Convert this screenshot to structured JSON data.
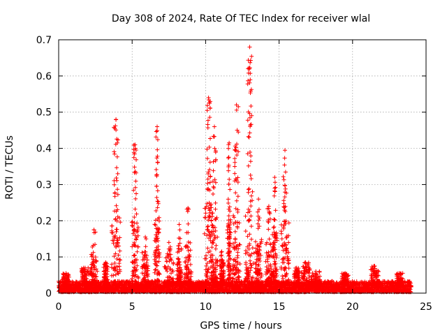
{
  "chart_data": {
    "type": "scatter",
    "title": "Day 308 of 2024, Rate Of TEC Index for receiver wlal",
    "xlabel": "GPS time / hours",
    "ylabel": "ROTI / TECUs",
    "xlim": [
      0,
      25
    ],
    "ylim": [
      0,
      0.7
    ],
    "xticks": [
      0,
      5,
      10,
      15,
      20,
      25
    ],
    "xtick_labels": [
      "0",
      "5",
      "10",
      "15",
      "20",
      "25"
    ],
    "yticks": [
      0,
      0.1,
      0.2,
      0.3,
      0.4,
      0.5,
      0.6,
      0.7
    ],
    "ytick_labels": [
      "0",
      "0.1",
      "0.2",
      "0.3",
      "0.4",
      "0.5",
      "0.6",
      "0.7"
    ],
    "grid": true,
    "marker": "+",
    "color": "#ff0000",
    "time_range": [
      0,
      24
    ],
    "background_level": 0.02,
    "bursts": [
      {
        "t": 0.5,
        "peak": 0.055
      },
      {
        "t": 1.8,
        "peak": 0.07
      },
      {
        "t": 2.4,
        "peak": 0.175
      },
      {
        "t": 3.2,
        "peak": 0.085
      },
      {
        "t": 3.9,
        "peak": 0.48
      },
      {
        "t": 5.2,
        "peak": 0.41
      },
      {
        "t": 5.9,
        "peak": 0.155
      },
      {
        "t": 6.7,
        "peak": 0.46
      },
      {
        "t": 7.5,
        "peak": 0.14
      },
      {
        "t": 8.2,
        "peak": 0.19
      },
      {
        "t": 8.8,
        "peak": 0.235
      },
      {
        "t": 10.2,
        "peak": 0.54
      },
      {
        "t": 10.6,
        "peak": 0.46
      },
      {
        "t": 11.1,
        "peak": 0.115
      },
      {
        "t": 11.6,
        "peak": 0.415
      },
      {
        "t": 12.1,
        "peak": 0.52
      },
      {
        "t": 13.0,
        "peak": 0.68
      },
      {
        "t": 13.6,
        "peak": 0.26
      },
      {
        "t": 14.3,
        "peak": 0.24
      },
      {
        "t": 14.7,
        "peak": 0.32
      },
      {
        "t": 15.4,
        "peak": 0.395
      },
      {
        "t": 16.2,
        "peak": 0.07
      },
      {
        "t": 16.8,
        "peak": 0.085
      },
      {
        "t": 17.5,
        "peak": 0.06
      },
      {
        "t": 19.5,
        "peak": 0.055
      },
      {
        "t": 21.5,
        "peak": 0.075
      },
      {
        "t": 23.2,
        "peak": 0.055
      }
    ]
  }
}
